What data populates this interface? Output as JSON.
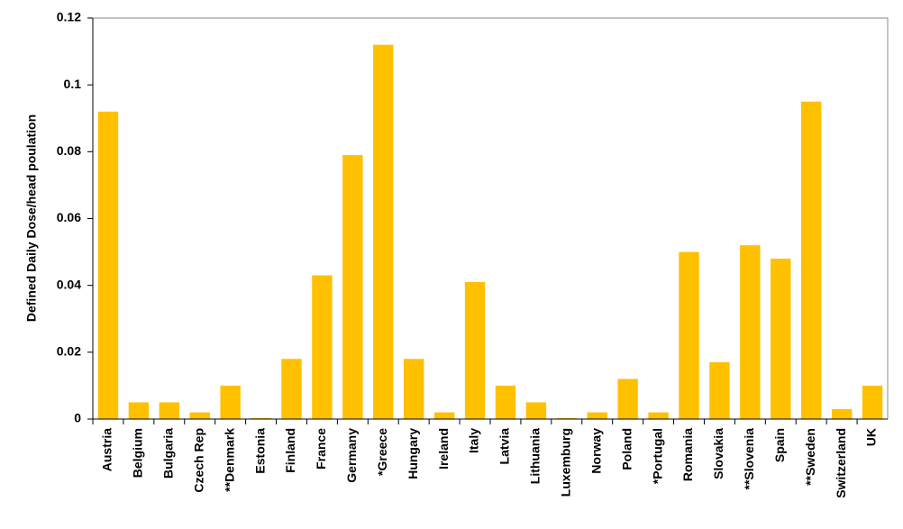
{
  "chart_data": {
    "type": "bar",
    "y_label": "Defined Daily Dose/head poulation",
    "categories": [
      "Austria",
      "Belgium",
      "Bulgaria",
      "Czech Rep",
      "**Denmark",
      "Estonia",
      "Finland",
      "France",
      "Germany",
      "*Greece",
      "Hungary",
      "Ireland",
      "Italy",
      "Latvia",
      "Lithuania",
      "Luxemburg",
      "Norway",
      "Poland",
      "*Portugal",
      "Romania",
      "Slovakia",
      "**Slovenia",
      "Spain",
      "**Sweden",
      "Switzerland",
      "UK"
    ],
    "values": [
      0.092,
      0.005,
      0.005,
      0.002,
      0.01,
      0.0003,
      0.018,
      0.043,
      0.079,
      0.112,
      0.018,
      0.002,
      0.041,
      0.01,
      0.005,
      0.0003,
      0.002,
      0.012,
      0.002,
      0.05,
      0.017,
      0.052,
      0.048,
      0.095,
      0.003,
      0.01
    ],
    "color": "#ffc000",
    "ylim": [
      0,
      0.12
    ],
    "yticks": [
      0,
      0.02,
      0.04,
      0.06,
      0.08,
      0.1,
      0.12
    ],
    "grid": false
  }
}
